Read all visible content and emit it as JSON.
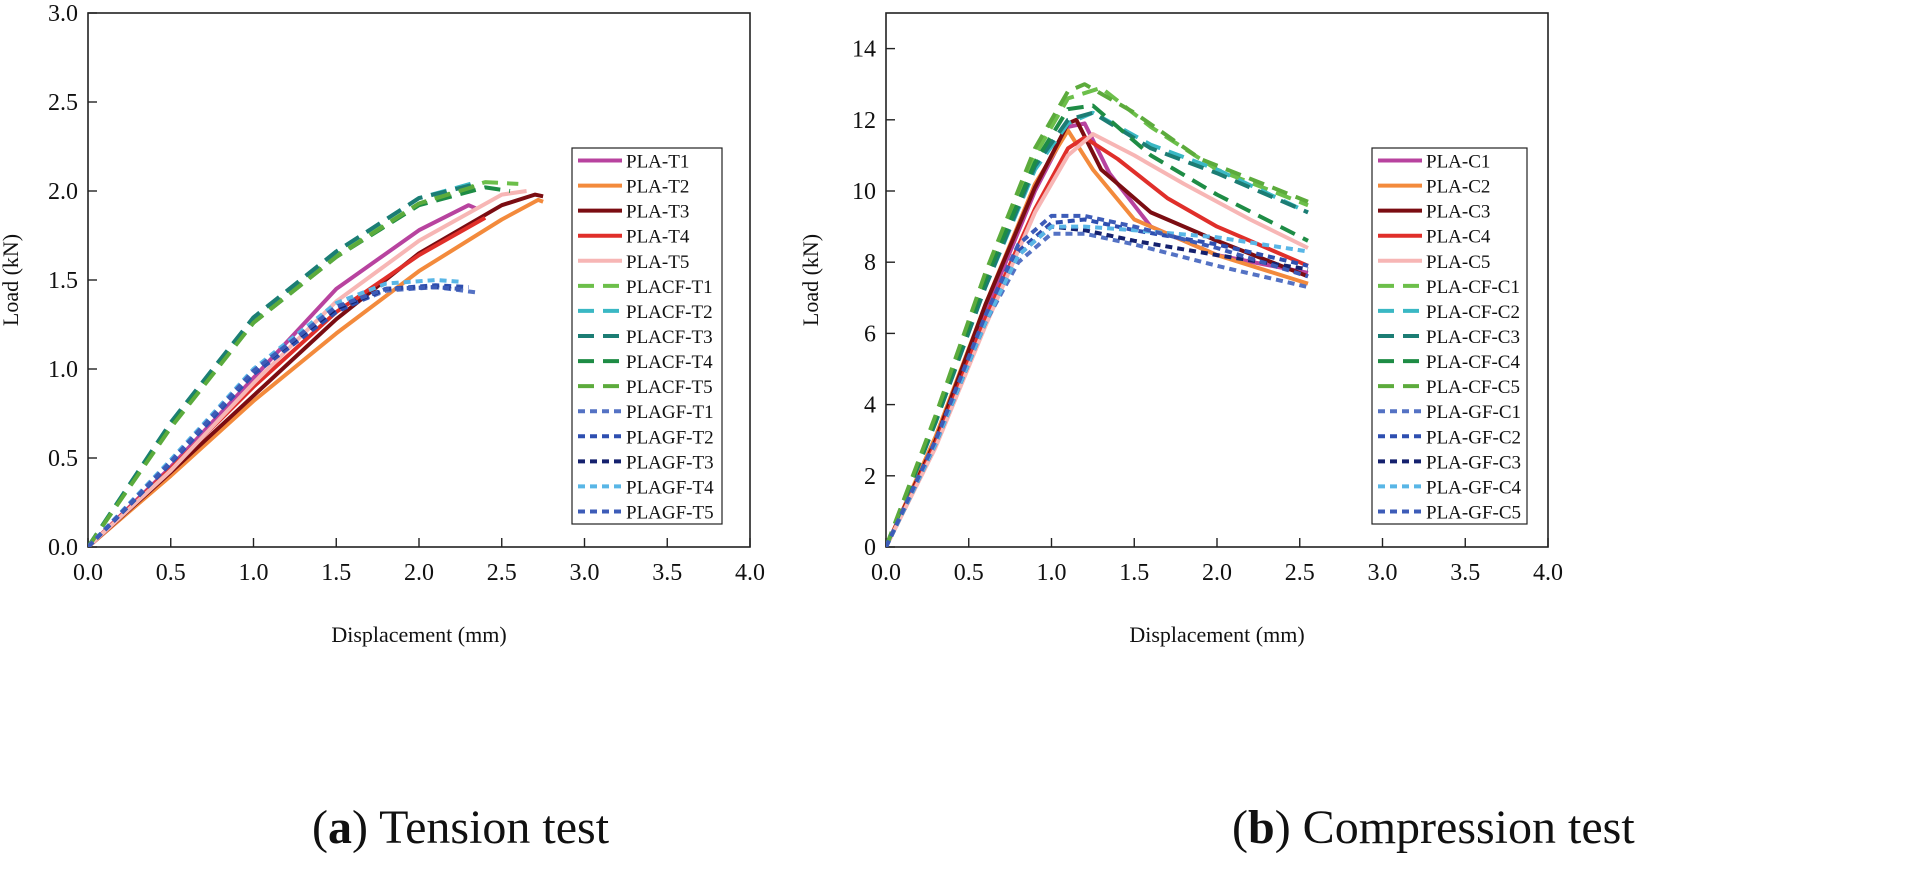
{
  "chart_data": [
    {
      "type": "line",
      "panel_letter": "a",
      "caption": "Tension test",
      "xlabel": "Displacement (mm)",
      "ylabel": "Load (kN)",
      "xlim": [
        0,
        4.0
      ],
      "ylim": [
        0,
        3.0
      ],
      "xticks": [
        "0.0",
        "0.5",
        "1.0",
        "1.5",
        "2.0",
        "2.5",
        "3.0",
        "3.5",
        "4.0"
      ],
      "yticks": [
        "0.0",
        "0.5",
        "1.0",
        "1.5",
        "2.0",
        "2.5",
        "3.0"
      ],
      "legend_position": "right",
      "series": [
        {
          "name": "PLA-T1",
          "color": "#b8439f",
          "dash": "solid",
          "x": [
            0,
            0.5,
            1.0,
            1.5,
            2.0,
            2.3,
            2.35
          ],
          "y": [
            0,
            0.45,
            0.95,
            1.45,
            1.78,
            1.92,
            1.9
          ]
        },
        {
          "name": "PLA-T2",
          "color": "#f38a3c",
          "dash": "solid",
          "x": [
            0,
            0.5,
            1.0,
            1.5,
            2.0,
            2.5,
            2.72,
            2.75
          ],
          "y": [
            0,
            0.4,
            0.82,
            1.2,
            1.55,
            1.84,
            1.95,
            1.94
          ]
        },
        {
          "name": "PLA-T3",
          "color": "#7b0d12",
          "dash": "solid",
          "x": [
            0,
            0.5,
            1.0,
            1.5,
            2.0,
            2.5,
            2.7,
            2.75
          ],
          "y": [
            0,
            0.42,
            0.85,
            1.28,
            1.65,
            1.92,
            1.98,
            1.97
          ]
        },
        {
          "name": "PLA-T4",
          "color": "#e02f2a",
          "dash": "solid",
          "x": [
            0,
            0.5,
            1.0,
            1.5,
            2.0,
            2.4
          ],
          "y": [
            0,
            0.44,
            0.9,
            1.32,
            1.64,
            1.85
          ]
        },
        {
          "name": "PLA-T5",
          "color": "#f7b6b5",
          "dash": "solid",
          "x": [
            0,
            0.5,
            1.0,
            1.5,
            2.0,
            2.5,
            2.65
          ],
          "y": [
            0,
            0.43,
            0.92,
            1.38,
            1.72,
            1.98,
            2.0
          ]
        },
        {
          "name": "PLACF-T1",
          "color": "#6cbf4a",
          "dash": "dash",
          "x": [
            0,
            0.5,
            1.0,
            1.5,
            2.0,
            2.4,
            2.6
          ],
          "y": [
            0,
            0.68,
            1.27,
            1.64,
            1.93,
            2.05,
            2.04
          ]
        },
        {
          "name": "PLACF-T2",
          "color": "#3ab8c4",
          "dash": "dash",
          "x": [
            0,
            0.5,
            1.0,
            1.5,
            2.0,
            2.35
          ],
          "y": [
            0,
            0.7,
            1.29,
            1.66,
            1.96,
            2.05
          ]
        },
        {
          "name": "PLACF-T3",
          "color": "#1c7d74",
          "dash": "dash",
          "x": [
            0,
            0.5,
            1.0,
            1.5,
            2.0,
            2.35
          ],
          "y": [
            0,
            0.7,
            1.29,
            1.66,
            1.96,
            2.04
          ]
        },
        {
          "name": "PLACF-T4",
          "color": "#1e8c45",
          "dash": "dash",
          "x": [
            0,
            0.5,
            1.0,
            1.5,
            2.0,
            2.4,
            2.55
          ],
          "y": [
            0,
            0.68,
            1.26,
            1.63,
            1.92,
            2.02,
            2.0
          ]
        },
        {
          "name": "PLACF-T5",
          "color": "#5cab3c",
          "dash": "dash",
          "x": [
            0,
            0.5,
            1.0,
            1.5,
            2.0,
            2.35
          ],
          "y": [
            0,
            0.67,
            1.26,
            1.63,
            1.93,
            2.03
          ]
        },
        {
          "name": "PLAGF-T1",
          "color": "#5472c4",
          "dash": "dot",
          "x": [
            0,
            0.5,
            1.0,
            1.5,
            1.8,
            2.1,
            2.35
          ],
          "y": [
            0,
            0.47,
            0.98,
            1.33,
            1.44,
            1.46,
            1.43
          ]
        },
        {
          "name": "PLAGF-T2",
          "color": "#2e4fb0",
          "dash": "dot",
          "x": [
            0,
            0.5,
            1.0,
            1.5,
            1.8,
            2.1,
            2.3
          ],
          "y": [
            0,
            0.47,
            0.97,
            1.32,
            1.45,
            1.47,
            1.46
          ]
        },
        {
          "name": "PLAGF-T3",
          "color": "#15216e",
          "dash": "dot",
          "x": [
            0,
            0.5,
            1.0,
            1.5,
            1.8,
            2.1,
            2.25
          ],
          "y": [
            0,
            0.48,
            0.99,
            1.34,
            1.45,
            1.46,
            1.45
          ]
        },
        {
          "name": "PLAGF-T4",
          "color": "#59b6e6",
          "dash": "dot",
          "x": [
            0,
            0.5,
            1.0,
            1.5,
            1.8,
            2.1,
            2.25
          ],
          "y": [
            0,
            0.49,
            1.0,
            1.37,
            1.48,
            1.5,
            1.49
          ]
        },
        {
          "name": "PLAGF-T5",
          "color": "#3d5cb8",
          "dash": "dot",
          "x": [
            0,
            0.5,
            1.0,
            1.5,
            1.8,
            2.1,
            2.25
          ],
          "y": [
            0,
            0.48,
            0.99,
            1.35,
            1.45,
            1.46,
            1.45
          ]
        }
      ]
    },
    {
      "type": "line",
      "panel_letter": "b",
      "caption": "Compression test",
      "xlabel": "Displacement (mm)",
      "ylabel": "Load (kN)",
      "xlim": [
        0,
        4.0
      ],
      "ylim": [
        0,
        15
      ],
      "xticks": [
        "0.0",
        "0.5",
        "1.0",
        "1.5",
        "2.0",
        "2.5",
        "3.0",
        "3.5",
        "4.0"
      ],
      "yticks": [
        "0",
        "2",
        "4",
        "6",
        "8",
        "10",
        "12",
        "14"
      ],
      "legend_position": "right",
      "series": [
        {
          "name": "PLA-C1",
          "color": "#b8439f",
          "dash": "solid",
          "x": [
            0,
            0.3,
            0.6,
            0.9,
            1.1,
            1.2,
            1.35,
            1.6,
            2.0,
            2.55
          ],
          "y": [
            0,
            3.0,
            6.6,
            10.0,
            11.8,
            11.9,
            10.5,
            9.0,
            8.2,
            7.7
          ]
        },
        {
          "name": "PLA-C2",
          "color": "#f38a3c",
          "dash": "solid",
          "x": [
            0,
            0.3,
            0.6,
            0.9,
            1.1,
            1.25,
            1.5,
            2.0,
            2.55
          ],
          "y": [
            0,
            3.1,
            6.8,
            10.2,
            11.7,
            10.6,
            9.2,
            8.2,
            7.4
          ]
        },
        {
          "name": "PLA-C3",
          "color": "#7b0d12",
          "dash": "solid",
          "x": [
            0,
            0.3,
            0.6,
            0.9,
            1.1,
            1.15,
            1.3,
            1.6,
            2.0,
            2.55
          ],
          "y": [
            0,
            3.0,
            6.8,
            10.1,
            11.9,
            12.0,
            10.6,
            9.4,
            8.6,
            7.6
          ]
        },
        {
          "name": "PLA-C4",
          "color": "#e02f2a",
          "dash": "solid",
          "x": [
            0,
            0.3,
            0.6,
            0.9,
            1.1,
            1.2,
            1.4,
            1.7,
            2.0,
            2.55
          ],
          "y": [
            0,
            2.9,
            6.4,
            9.5,
            11.2,
            11.5,
            10.9,
            9.8,
            9.0,
            7.9
          ]
        },
        {
          "name": "PLA-C5",
          "color": "#f7b6b5",
          "dash": "solid",
          "x": [
            0,
            0.3,
            0.6,
            0.9,
            1.1,
            1.25,
            1.5,
            1.8,
            2.2,
            2.55
          ],
          "y": [
            0,
            2.8,
            6.2,
            9.4,
            11.0,
            11.6,
            11.0,
            10.2,
            9.2,
            8.4
          ]
        },
        {
          "name": "PLA-CF-C1",
          "color": "#6cbf4a",
          "dash": "dash",
          "x": [
            0,
            0.3,
            0.6,
            0.9,
            1.1,
            1.3,
            1.6,
            2.0,
            2.55
          ],
          "y": [
            0,
            3.6,
            7.5,
            11.0,
            12.6,
            12.9,
            11.8,
            10.6,
            9.6
          ]
        },
        {
          "name": "PLA-CF-C2",
          "color": "#3ab8c4",
          "dash": "dash",
          "x": [
            0,
            0.3,
            0.6,
            0.9,
            1.1,
            1.25,
            1.6,
            2.0,
            2.55
          ],
          "y": [
            0,
            3.5,
            7.3,
            10.6,
            11.9,
            12.2,
            11.3,
            10.6,
            9.4
          ]
        },
        {
          "name": "PLA-CF-C3",
          "color": "#1c7d74",
          "dash": "dash",
          "x": [
            0,
            0.3,
            0.6,
            0.9,
            1.1,
            1.25,
            1.6,
            2.0,
            2.55
          ],
          "y": [
            0,
            3.5,
            7.3,
            10.7,
            12.0,
            12.2,
            11.2,
            10.5,
            9.4
          ]
        },
        {
          "name": "PLA-CF-C4",
          "color": "#1e8c45",
          "dash": "dash",
          "x": [
            0,
            0.3,
            0.6,
            0.9,
            1.1,
            1.25,
            1.6,
            2.0,
            2.55
          ],
          "y": [
            0,
            3.6,
            7.5,
            10.8,
            12.3,
            12.4,
            11.0,
            9.9,
            8.6
          ]
        },
        {
          "name": "PLA-CF-C5",
          "color": "#5cab3c",
          "dash": "dash",
          "x": [
            0,
            0.3,
            0.6,
            0.9,
            1.1,
            1.2,
            1.5,
            1.9,
            2.55
          ],
          "y": [
            0,
            3.7,
            7.7,
            11.2,
            12.8,
            13.0,
            12.2,
            10.9,
            9.7
          ]
        },
        {
          "name": "PLA-GF-C1",
          "color": "#5472c4",
          "dash": "dot",
          "x": [
            0,
            0.3,
            0.6,
            0.8,
            1.0,
            1.2,
            1.5,
            2.0,
            2.55
          ],
          "y": [
            0,
            2.9,
            6.3,
            8.0,
            8.8,
            8.8,
            8.5,
            7.9,
            7.3
          ]
        },
        {
          "name": "PLA-GF-C2",
          "color": "#2e4fb0",
          "dash": "dot",
          "x": [
            0,
            0.3,
            0.6,
            0.8,
            1.0,
            1.2,
            1.5,
            2.0,
            2.55
          ],
          "y": [
            0,
            2.9,
            6.4,
            8.3,
            9.1,
            9.2,
            8.9,
            8.5,
            7.9
          ]
        },
        {
          "name": "PLA-GF-C3",
          "color": "#15216e",
          "dash": "dot",
          "x": [
            0,
            0.3,
            0.6,
            0.8,
            1.0,
            1.2,
            1.5,
            2.0,
            2.55
          ],
          "y": [
            0,
            2.9,
            6.3,
            8.2,
            9.0,
            8.9,
            8.6,
            8.2,
            7.8
          ]
        },
        {
          "name": "PLA-GF-C4",
          "color": "#59b6e6",
          "dash": "dot",
          "x": [
            0,
            0.3,
            0.6,
            0.8,
            1.0,
            1.2,
            1.5,
            2.0,
            2.55
          ],
          "y": [
            0,
            2.9,
            6.3,
            8.2,
            9.0,
            9.0,
            8.9,
            8.7,
            8.3
          ]
        },
        {
          "name": "PLA-GF-C5",
          "color": "#3d5cb8",
          "dash": "dot",
          "x": [
            0,
            0.3,
            0.6,
            0.8,
            1.0,
            1.2,
            1.5,
            2.0,
            2.55
          ],
          "y": [
            0,
            3.0,
            6.5,
            8.5,
            9.3,
            9.3,
            9.0,
            8.4,
            7.6
          ]
        }
      ]
    }
  ]
}
